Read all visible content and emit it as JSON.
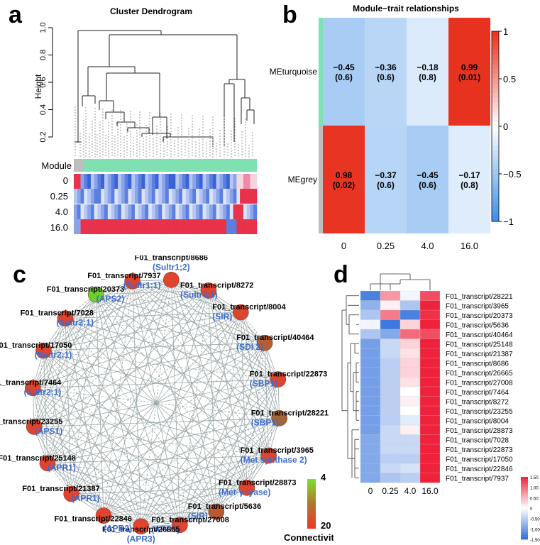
{
  "panel_letters": [
    "a",
    "b",
    "c",
    "d"
  ],
  "panel_a": {
    "title": "Cluster Dendrogram",
    "ylabel": "Height",
    "yticks": [
      "0.2",
      "0.4",
      "0.6",
      "0.8",
      "1.0"
    ],
    "module_label": "Module",
    "row_labels": [
      "0",
      "0.25",
      "4.0",
      "16.0"
    ],
    "colors": {
      "module_grey": "#bebebe",
      "module_turquoise": "#7fe0b2"
    }
  },
  "chart_data": [
    {
      "type": "heatmap",
      "title": "Module−trait relationships",
      "rows": [
        "MEturquoise",
        "MEgrey"
      ],
      "columns": [
        "0",
        "0.25",
        "4.0",
        "16.0"
      ],
      "values": [
        [
          -0.45,
          -0.36,
          -0.18,
          0.99
        ],
        [
          0.98,
          -0.37,
          -0.45,
          -0.17
        ]
      ],
      "cell_text": [
        [
          "−0.45",
          "−0.36",
          "−0.18",
          "0.99"
        ],
        [
          "0.98",
          "−0.37",
          "−0.45",
          "−0.17"
        ]
      ],
      "cell_pvalues": [
        [
          "(0.6)",
          "(0.6)",
          "(0.8)",
          "(0.01)"
        ],
        [
          "(0.02)",
          "(0.6)",
          "(0.6)",
          "(0.8)"
        ]
      ],
      "colorbar_ticks": [
        "1",
        "0.5",
        "0",
        "−0.5",
        "−1"
      ],
      "zlim": [
        -1,
        1
      ]
    },
    {
      "type": "heatmap",
      "rows": [
        "F01_transcript/28221",
        "F01_transcript/3965",
        "F01_transcript/20373",
        "F01_transcript/5636",
        "F01_transcript/40464",
        "F01_transcript/25148",
        "F01_transcript/21387",
        "F01_transcript/8686",
        "F01_transcript/26665",
        "F01_transcript/27008",
        "F01_transcript/7464",
        "F01_transcript/8272",
        "F01_transcript/23255",
        "F01_transcript/8004",
        "F01_transcript/28873",
        "F01_transcript/7028",
        "F01_transcript/22873",
        "F01_transcript/17050",
        "F01_transcript/22846",
        "F01_transcript/7937"
      ],
      "columns": [
        "0",
        "0.25",
        "4.0",
        "16.0"
      ],
      "values": [
        [
          -1.3,
          0.7,
          -0.1,
          1.2
        ],
        [
          -0.8,
          0.1,
          -0.6,
          1.5
        ],
        [
          -0.6,
          0.9,
          -1.3,
          1.4
        ],
        [
          -0.1,
          -1.4,
          0.3,
          1.5
        ],
        [
          -0.6,
          -0.9,
          1.0,
          1.2
        ],
        [
          -1.0,
          -0.4,
          0.3,
          1.5
        ],
        [
          -1.0,
          -0.4,
          0.2,
          1.5
        ],
        [
          -1.0,
          -0.5,
          0.3,
          1.5
        ],
        [
          -1.0,
          -0.5,
          0.3,
          1.5
        ],
        [
          -1.0,
          -0.5,
          0.2,
          1.5
        ],
        [
          -1.0,
          -0.5,
          0.0,
          1.5
        ],
        [
          -1.0,
          -0.5,
          0.1,
          1.5
        ],
        [
          -1.0,
          -0.5,
          0.0,
          1.5
        ],
        [
          -1.0,
          -0.5,
          -0.2,
          1.5
        ],
        [
          -1.0,
          -0.4,
          0.1,
          1.5
        ],
        [
          -0.9,
          -0.4,
          -0.4,
          1.5
        ],
        [
          -0.9,
          -0.4,
          -0.4,
          1.5
        ],
        [
          -0.9,
          -0.5,
          -0.5,
          1.5
        ],
        [
          -0.9,
          -0.4,
          -0.3,
          1.5
        ],
        [
          -0.9,
          -0.6,
          -0.5,
          1.5
        ]
      ],
      "colorbar_ticks": [
        "1.50",
        "1.00",
        "0.50",
        "0",
        "-0.50",
        "-1.00",
        "-1.50"
      ],
      "zlim": [
        -1.5,
        1.5
      ]
    }
  ],
  "panel_c": {
    "legend_title": "Connectivity",
    "legend_max": "4",
    "legend_min": "20",
    "nodes": [
      {
        "id": "F01_transcript/8686",
        "gene": "(Sultr1;2)",
        "color": "#e0442f"
      },
      {
        "id": "F01_transcript/8272",
        "gene": "(Sultr4;1)",
        "color": "#e0442f"
      },
      {
        "id": "F01_transcript/8004",
        "gene": "(SIR)",
        "color": "#d8462f"
      },
      {
        "id": "F01_transcript/40464",
        "gene": "(SDI 2)",
        "color": "#b85c33"
      },
      {
        "id": "F01_transcript/22873",
        "gene": "(SBP1)",
        "color": "#e0442f"
      },
      {
        "id": "F01_transcript/28221",
        "gene": "(SBP1)",
        "color": "#a5653a"
      },
      {
        "id": "F01_transcript/3965",
        "gene": "(Met synthase 2)",
        "color": "#d8482f"
      },
      {
        "id": "F01_transcript/28873",
        "gene": "(Met-γ-lyase)",
        "color": "#e0442f"
      },
      {
        "id": "F01_transcript/5636",
        "gene": "(SIR)",
        "color": "#b95a32"
      },
      {
        "id": "F01_transcript/27008",
        "gene": "(APR3)",
        "color": "#e0442f"
      },
      {
        "id": "F01_transcript/26665",
        "gene": "(APR3)",
        "color": "#e0442f"
      },
      {
        "id": "F01_transcript/22846",
        "gene": "(APR2)",
        "color": "#e0442f"
      },
      {
        "id": "F01_transcript/21387",
        "gene": "(APR1)",
        "color": "#e0442f"
      },
      {
        "id": "F01_transcript/25148",
        "gene": "(APR1)",
        "color": "#e0442f"
      },
      {
        "id": "F01_transcript/23255",
        "gene": "(APS1)",
        "color": "#e0442f"
      },
      {
        "id": "F01_transcript/7464",
        "gene": "(Sultr2;1)",
        "color": "#e0442f"
      },
      {
        "id": "F01_transcript/17050",
        "gene": "(Sultr2;1)",
        "color": "#e0442f"
      },
      {
        "id": "F01_transcript/7028",
        "gene": "(Sultr2;1)",
        "color": "#e0442f"
      },
      {
        "id": "F01_transcript/20373",
        "gene": "(APS2)",
        "color": "#6fcf2e"
      },
      {
        "id": "F01_transcript/7937",
        "gene": "(Sultr1;1)",
        "color": "#e0442f"
      }
    ]
  }
}
